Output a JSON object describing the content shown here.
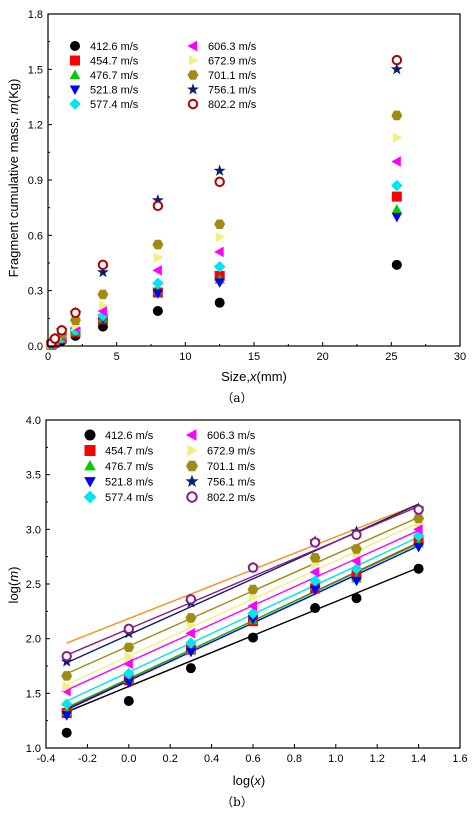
{
  "chart_data": [
    {
      "type": "scatter",
      "caption": "（a）",
      "xlabel_prefix": "Size,",
      "xlabel_var": "x",
      "xlabel_suffix": "(mm)",
      "ylabel_prefix": "Fragment cumulative mass, ",
      "ylabel_var": "m",
      "ylabel_suffix": "(Kg)",
      "xlim": [
        0,
        30
      ],
      "ylim": [
        0.0,
        1.8
      ],
      "xticks": [
        "0",
        "5",
        "10",
        "15",
        "20",
        "25",
        "30"
      ],
      "yticks": [
        "0.0",
        "0.3",
        "0.6",
        "0.9",
        "1.2",
        "1.5",
        "1.8"
      ],
      "x": [
        0.25,
        0.5,
        1,
        2,
        4,
        8,
        12.5,
        25.4
      ],
      "legend_position": "top-left",
      "series": [
        {
          "name": "412.6 m/s",
          "marker": "circle",
          "color": "#000000",
          "values": [
            0.005,
            0.012,
            0.028,
            0.055,
            0.105,
            0.19,
            0.235,
            0.44
          ]
        },
        {
          "name": "454.7 m/s",
          "marker": "square",
          "color": "#ff0000",
          "values": [
            0.007,
            0.018,
            0.04,
            0.075,
            0.145,
            0.29,
            0.38,
            0.81
          ]
        },
        {
          "name": "476.7 m/s",
          "marker": "triangle-up",
          "color": "#00cc00",
          "values": [
            0.007,
            0.018,
            0.04,
            0.078,
            0.15,
            0.3,
            0.36,
            0.74
          ]
        },
        {
          "name": "521.8 m/s",
          "marker": "triangle-down",
          "color": "#0000ff",
          "values": [
            0.007,
            0.017,
            0.04,
            0.076,
            0.15,
            0.285,
            0.345,
            0.7
          ]
        },
        {
          "name": "577.4 m/s",
          "marker": "diamond",
          "color": "#00e5ee",
          "values": [
            0.008,
            0.02,
            0.044,
            0.085,
            0.165,
            0.34,
            0.43,
            0.87
          ]
        },
        {
          "name": "606.3 m/s",
          "marker": "triangle-left",
          "color": "#ff00ff",
          "values": [
            0.009,
            0.022,
            0.05,
            0.1,
            0.19,
            0.41,
            0.51,
            1.0
          ]
        },
        {
          "name": "672.9 m/s",
          "marker": "triangle-right",
          "color": "#f0f080",
          "values": [
            0.01,
            0.025,
            0.055,
            0.11,
            0.22,
            0.48,
            0.59,
            1.13
          ]
        },
        {
          "name": "701.1 m/s",
          "marker": "hexagon",
          "color": "#a08c10",
          "values": [
            0.012,
            0.03,
            0.065,
            0.14,
            0.28,
            0.55,
            0.66,
            1.25
          ]
        },
        {
          "name": "756.1 m/s",
          "marker": "star",
          "color": "#0a1f6e",
          "values": [
            0.016,
            0.04,
            0.085,
            0.18,
            0.4,
            0.79,
            0.95,
            1.5
          ]
        },
        {
          "name": "802.2 m/s",
          "marker": "circle-open",
          "color": "#b20000",
          "values": [
            0.015,
            0.04,
            0.085,
            0.18,
            0.44,
            0.76,
            0.89,
            1.55
          ]
        }
      ]
    },
    {
      "type": "scatter",
      "caption": "（b）",
      "xlabel": "log(x)",
      "ylabel": "log(m)",
      "xlim": [
        -0.4,
        1.6
      ],
      "ylim": [
        1.0,
        4.0
      ],
      "xticks": [
        "-0.4",
        "-0.2",
        "0.0",
        "0.2",
        "0.4",
        "0.6",
        "0.8",
        "1.0",
        "1.2",
        "1.4",
        "1.6"
      ],
      "yticks": [
        "1.0",
        "1.5",
        "2.0",
        "2.5",
        "3.0",
        "3.5",
        "4.0"
      ],
      "x": [
        -0.3,
        0.0,
        0.3,
        0.6,
        0.9,
        1.1,
        1.4
      ],
      "legend_position": "top-left",
      "series": [
        {
          "name": "412.6 m/s",
          "marker": "circle",
          "color": "#000000",
          "values": [
            1.14,
            1.43,
            1.73,
            2.01,
            2.28,
            2.37,
            2.64
          ],
          "fit": [
            1.33,
            2.65
          ]
        },
        {
          "name": "454.7 m/s",
          "marker": "square",
          "color": "#ff0000",
          "values": [
            1.32,
            1.62,
            1.9,
            2.16,
            2.46,
            2.58,
            2.9
          ],
          "fit": [
            1.36,
            2.88
          ]
        },
        {
          "name": "476.7 m/s",
          "marker": "triangle-up",
          "color": "#00cc00",
          "values": [
            1.33,
            1.63,
            1.9,
            2.17,
            2.48,
            2.55,
            2.87
          ],
          "fit": [
            1.37,
            2.87
          ]
        },
        {
          "name": "521.8 m/s",
          "marker": "triangle-down",
          "color": "#0000ff",
          "values": [
            1.3,
            1.6,
            1.88,
            2.18,
            2.45,
            2.53,
            2.84
          ],
          "fit": [
            1.35,
            2.85
          ]
        },
        {
          "name": "577.4 m/s",
          "marker": "diamond",
          "color": "#00e5ee",
          "values": [
            1.4,
            1.68,
            1.96,
            2.23,
            2.53,
            2.64,
            2.94
          ],
          "fit": [
            1.43,
            2.93
          ]
        },
        {
          "name": "606.3 m/s",
          "marker": "triangle-left",
          "color": "#ff00ff",
          "values": [
            1.52,
            1.77,
            2.05,
            2.3,
            2.61,
            2.71,
            3.0
          ],
          "fit": [
            1.53,
            2.99
          ]
        },
        {
          "name": "672.9 m/s",
          "marker": "triangle-right",
          "color": "#f0f080",
          "values": [
            1.56,
            1.83,
            2.12,
            2.38,
            2.68,
            2.78,
            3.06
          ],
          "fit": [
            1.58,
            3.06
          ]
        },
        {
          "name": "701.1 m/s",
          "marker": "hexagon",
          "color": "#a08c10",
          "values": [
            1.66,
            1.92,
            2.19,
            2.45,
            2.74,
            2.82,
            3.1
          ],
          "fit": [
            1.68,
            3.11
          ]
        },
        {
          "name": "756.1 m/s",
          "marker": "star",
          "color": "#0a1f6e",
          "values": [
            1.79,
            2.05,
            2.33,
            2.65,
            2.89,
            2.98,
            3.19
          ],
          "fit": [
            1.78,
            3.23
          ]
        },
        {
          "name": "802.2 m/s",
          "marker": "circle-open",
          "color": "#8a1a8a",
          "values": [
            1.84,
            2.09,
            2.36,
            2.65,
            2.88,
            2.95,
            3.18
          ],
          "fit": [
            1.85,
            3.21
          ]
        }
      ],
      "extra_fit": {
        "color": "#ff8c1a",
        "fit": [
          1.96,
          3.23
        ]
      }
    }
  ]
}
